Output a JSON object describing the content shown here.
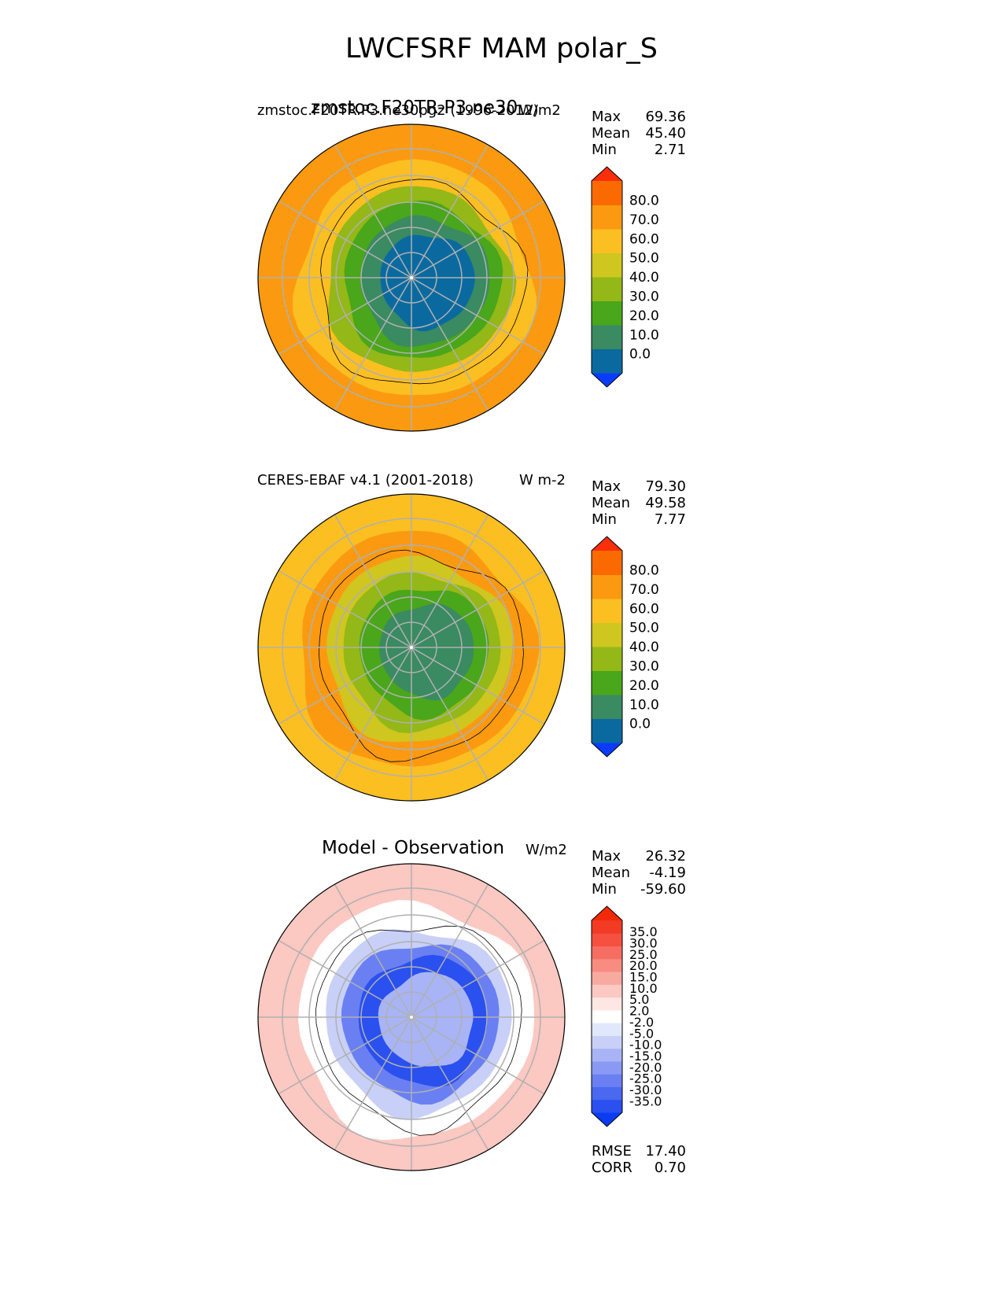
{
  "main_title": "LWCFSRF MAM polar_S",
  "panels": [
    {
      "left_title": "zmstoc.F20TR.P3.ne30pg2 (1996-2012)",
      "center_title": "zmstoc.F20TR-P3.ne30",
      "units": "W/m2",
      "stats": {
        "max_label": "Max",
        "max": "69.36",
        "mean_label": "Mean",
        "mean": "45.40",
        "min_label": "Min",
        "min": "2.71"
      }
    },
    {
      "left_title": "CERES-EBAF v4.1 (2001-2018)",
      "center_title": "",
      "units": "W m-2",
      "stats": {
        "max_label": "Max",
        "max": "79.30",
        "mean_label": "Mean",
        "mean": "49.58",
        "min_label": "Min",
        "min": "7.77"
      }
    },
    {
      "left_title": "",
      "center_title": "Model - Observation",
      "units": "W/m2",
      "stats": {
        "max_label": "Max",
        "max": "26.32",
        "mean_label": "Mean",
        "mean": "-4.19",
        "min_label": "Min",
        "min": "-59.60"
      },
      "extra": {
        "rmse_label": "RMSE",
        "rmse": "17.40",
        "corr_label": "CORR",
        "corr": "0.70"
      }
    }
  ],
  "colorbar_abs": {
    "ticks": [
      "80.0",
      "70.0",
      "60.0",
      "50.0",
      "40.0",
      "30.0",
      "20.0",
      "10.0",
      "0.0"
    ],
    "colors": [
      "#0a3cff",
      "#0a6aa0",
      "#3a8a62",
      "#4aa61a",
      "#93b817",
      "#cfc61f",
      "#fbbf22",
      "#fb9a10",
      "#fb6a00",
      "#f92e0a"
    ]
  },
  "colorbar_diff": {
    "ticks": [
      "35.0",
      "30.0",
      "25.0",
      "20.0",
      "15.0",
      "10.0",
      "5.0",
      "2.0",
      "-2.0",
      "-5.0",
      "-10.0",
      "-15.0",
      "-20.0",
      "-25.0",
      "-30.0",
      "-35.0"
    ],
    "colors": [
      "#0b3cf2",
      "#2a50f0",
      "#4a68f0",
      "#6a80f2",
      "#8a9af4",
      "#a8b4f6",
      "#c8d0f8",
      "#e2e8fb",
      "#ffffff",
      "#fde6e4",
      "#fcc8c2",
      "#f9aaa0",
      "#f88c80",
      "#f66e62",
      "#f55040",
      "#f33a22",
      "#f22a0a"
    ]
  },
  "maps": {
    "background_colors": [
      "#fb9a10",
      "#fbbf22",
      "#fcc8c2"
    ],
    "ring_colors": [
      [
        "#fbbf22",
        "#93b817",
        "#4aa61a",
        "#3a8a62",
        "#0a6aa0"
      ],
      [
        "#fb9a10",
        "#cfc61f",
        "#93b817",
        "#4aa61a",
        "#3a8a62"
      ],
      [
        "#ffffff",
        "#c8d0f8",
        "#6a80f2",
        "#2a50f0",
        "#a8b4f6"
      ]
    ]
  }
}
